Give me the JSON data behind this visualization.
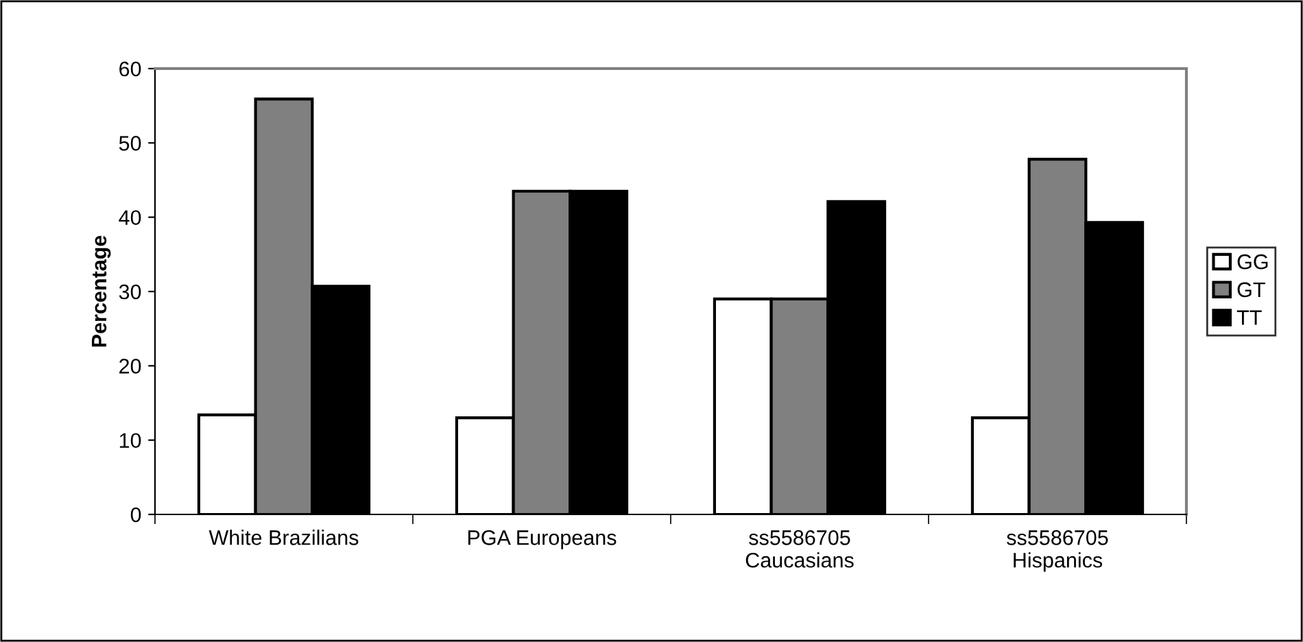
{
  "chart_data": {
    "type": "bar",
    "ylabel": "Percentage",
    "categories": [
      "White Brazilians",
      "PGA Europeans",
      "ss5586705\nCaucasians",
      "ss5586705\nHispanics"
    ],
    "series": [
      {
        "name": "GG",
        "color": "#ffffff",
        "values": [
          13.4,
          13.0,
          29.0,
          13.0
        ]
      },
      {
        "name": "GT",
        "color": "#808080",
        "values": [
          55.9,
          43.5,
          29.0,
          47.8
        ]
      },
      {
        "name": "TT",
        "color": "#000000",
        "values": [
          30.7,
          43.5,
          42.1,
          39.3
        ]
      }
    ],
    "ylim": [
      0,
      60
    ],
    "yticks": [
      0,
      10,
      20,
      30,
      40,
      50,
      60
    ],
    "grid": false,
    "legend": "right"
  }
}
